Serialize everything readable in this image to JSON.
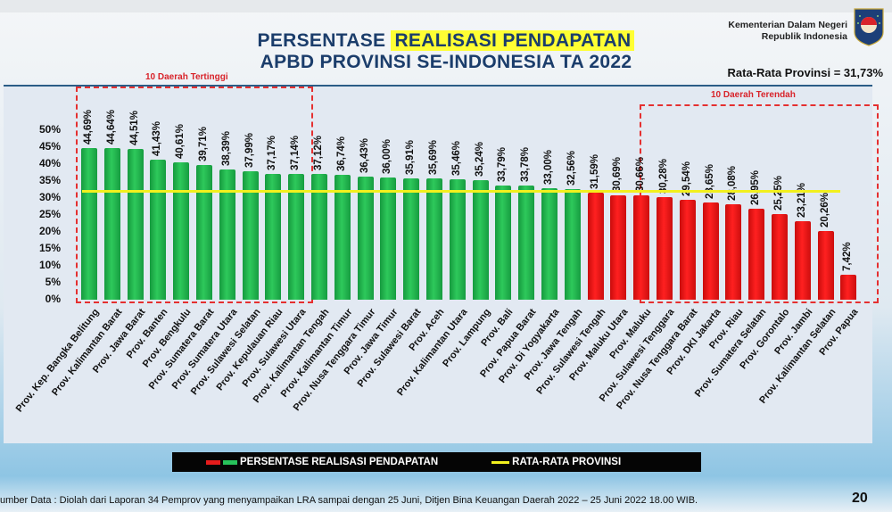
{
  "header": {
    "title_line1_prefix": "PERSENTASE ",
    "title_line1_highlight": "REALISASI PENDAPATAN",
    "title_line2": "APBD PROVINSI SE-INDONESIA TA 2022",
    "ministry_line1": "Kementerian Dalam Negeri",
    "ministry_line2": "Republik Indonesia",
    "average_label": "Rata-Rata Provinsi = 31,73%"
  },
  "groups": {
    "top_label": "10 Daerah Tertinggi",
    "bottom_label": "10 Daerah Terendah"
  },
  "legend": {
    "bars_label": "PERSENTASE REALISASI PENDAPATAN",
    "line_label": "RATA-RATA PROVINSI"
  },
  "footer": {
    "source": "umber Data : Diolah dari Laporan 34 Pemprov yang menyampaikan LRA sampai dengan 25 Juni, Ditjen Bina Keuangan Daerah 2022 – 25 Juni 2022  18.00 WIB.",
    "page_number": "20"
  },
  "colors": {
    "above_average": "#22b04b",
    "below_average": "#ff1a1a",
    "average_line": "#f2f01e",
    "title": "#1b3d6b",
    "highlight": "#ffff33"
  },
  "chart_data": {
    "type": "bar",
    "title": "PERSENTASE REALISASI PENDAPATAN APBD PROVINSI SE-INDONESIA TA 2022",
    "xlabel": "",
    "ylabel": "",
    "ylim": [
      0,
      50
    ],
    "yticks": [
      "0%",
      "5%",
      "10%",
      "15%",
      "20%",
      "25%",
      "30%",
      "35%",
      "40%",
      "45%",
      "50%"
    ],
    "average": 31.73,
    "average_label": "Rata-Rata Provinsi = 31,73%",
    "legend": [
      "PERSENTASE REALISASI PENDAPATAN",
      "RATA-RATA PROVINSI"
    ],
    "legend_position": "bottom",
    "categories": [
      "Prov. Kep. Bangka Belitung",
      "Prov. Kalimantan Barat",
      "Prov. Jawa Barat",
      "Prov. Banten",
      "Prov. Bengkulu",
      "Prov. Sumatera Barat",
      "Prov. Sumatera Utara",
      "Prov. Sulawesi Selatan",
      "Prov. Kepulauan Riau",
      "Prov. Sulawesi Utara",
      "Prov. Kalimantan Tengah",
      "Prov. Kalimantan Timur",
      "Prov. Nusa Tenggara Timur",
      "Prov. Jawa Timur",
      "Prov. Sulawesi Barat",
      "Prov. Aceh",
      "Prov. Kalimantan Utara",
      "Prov. Lampung",
      "Prov. Bali",
      "Prov. Papua Barat",
      "Prov. Di Yogyakarta",
      "Prov. Jawa Tengah",
      "Prov. Sulawesi Tengah",
      "Prov. Maluku Utara",
      "Prov. Maluku",
      "Prov. Sulawesi Tenggara",
      "Prov. Nusa Tenggara Barat",
      "Prov. DKI Jakarta",
      "Prov. Riau",
      "Prov. Sumatera Selatan",
      "Prov. Gorontalo",
      "Prov. Jambi",
      "Prov. Kalimantan Selatan",
      "Prov. Papua"
    ],
    "values": [
      44.69,
      44.64,
      44.51,
      41.43,
      40.61,
      39.71,
      38.39,
      37.99,
      37.17,
      37.14,
      37.12,
      36.74,
      36.43,
      36.0,
      35.91,
      35.69,
      35.46,
      35.24,
      33.79,
      33.78,
      33.0,
      32.56,
      31.59,
      30.69,
      30.66,
      30.28,
      29.54,
      28.65,
      28.08,
      26.95,
      25.25,
      23.21,
      20.26,
      7.42
    ],
    "value_labels": [
      "44,69%",
      "44,64%",
      "44,51%",
      "41,43%",
      "40,61%",
      "39,71%",
      "38,39%",
      "37,99%",
      "37,17%",
      "37,14%",
      "37,12%",
      "36,74%",
      "36,43%",
      "36,00%",
      "35,91%",
      "35,69%",
      "35,46%",
      "35,24%",
      "33,79%",
      "33,78%",
      "33,00%",
      "32,56%",
      "31,59%",
      "30,69%",
      "30,66%",
      "30,28%",
      "29,54%",
      "28,65%",
      "28,08%",
      "26,95%",
      "25,25%",
      "23,21%",
      "20,26%",
      "7,42%"
    ],
    "bar_colors": [
      "green",
      "green",
      "green",
      "green",
      "green",
      "green",
      "green",
      "green",
      "green",
      "green",
      "green",
      "green",
      "green",
      "green",
      "green",
      "green",
      "green",
      "green",
      "green",
      "green",
      "green",
      "green",
      "red",
      "red",
      "red",
      "red",
      "red",
      "red",
      "red",
      "red",
      "red",
      "red",
      "red",
      "red"
    ],
    "annotations": [
      {
        "text": "10 Daerah Tertinggi",
        "range": [
          0,
          9
        ]
      },
      {
        "text": "10 Daerah Terendah",
        "range": [
          24,
          33
        ]
      }
    ]
  }
}
